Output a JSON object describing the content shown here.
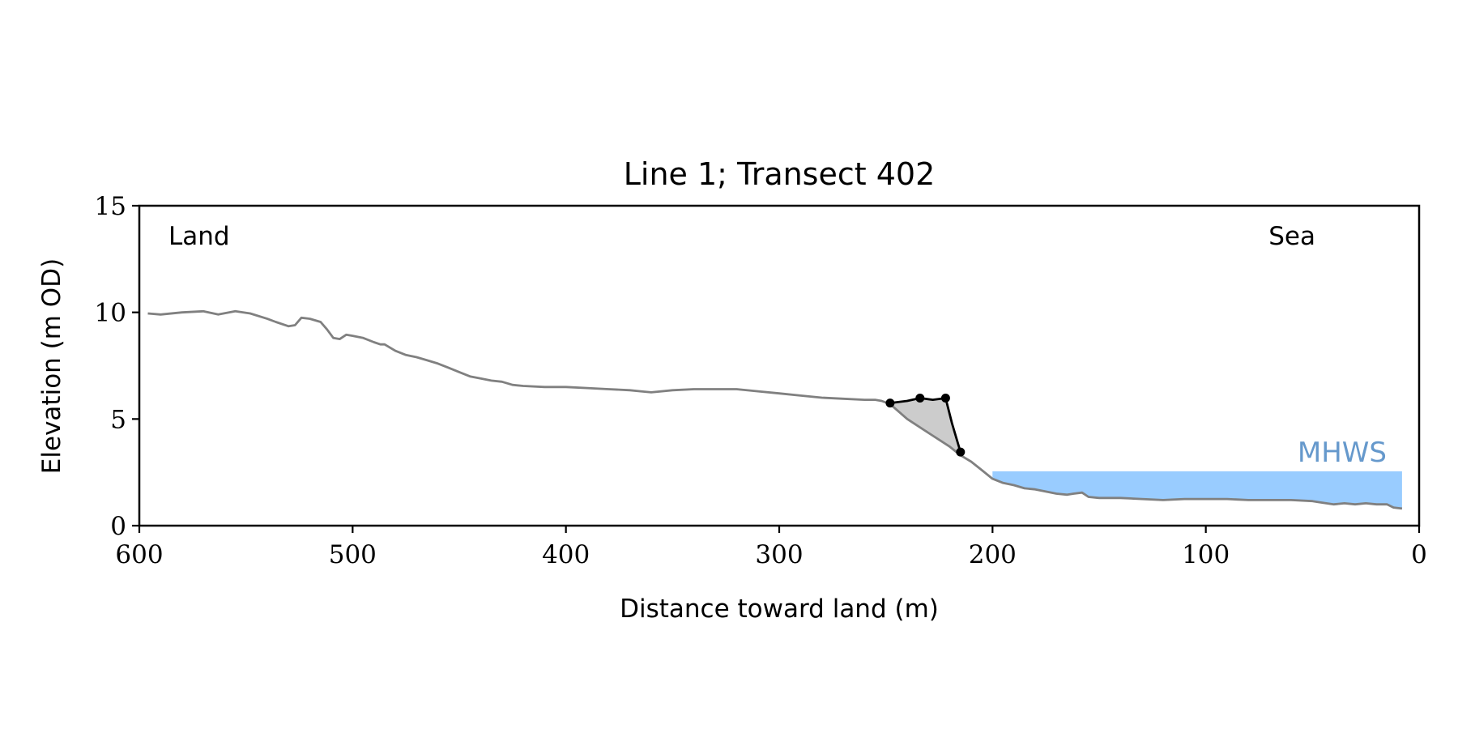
{
  "chart_data": {
    "type": "line",
    "title": "Line 1; Transect 402",
    "xlabel": "Distance toward land (m)",
    "ylabel": "Elevation (m OD)",
    "xlim": [
      600,
      0
    ],
    "ylim": [
      0,
      15
    ],
    "x_inverted": true,
    "xticks": [
      600,
      500,
      400,
      300,
      200,
      100,
      0
    ],
    "xtick_labels": [
      "600",
      "500",
      "400",
      "300",
      "200",
      "100",
      "0"
    ],
    "yticks": [
      0,
      5,
      10,
      15
    ],
    "ytick_labels": [
      "0",
      "5",
      "10",
      "15"
    ],
    "grid": false,
    "annotations": {
      "land": "Land",
      "sea": "Sea",
      "mhws": "MHWS"
    },
    "colors": {
      "profile": "#808080",
      "feature": "#000000",
      "feature_fill": "#cccccc",
      "water": "#99ccff",
      "mhws_text": "#6699cc"
    },
    "mhws_level": 2.55,
    "mhws_x_range": [
      200,
      8
    ],
    "profile": {
      "x": [
        596,
        590,
        580,
        570,
        563,
        555,
        548,
        540,
        536,
        530,
        527,
        524,
        520,
        515,
        512,
        509,
        506,
        503,
        500,
        495,
        490,
        487,
        485,
        480,
        475,
        470,
        465,
        460,
        455,
        450,
        445,
        440,
        435,
        430,
        425,
        420,
        410,
        400,
        390,
        380,
        370,
        365,
        360,
        350,
        340,
        330,
        320,
        310,
        300,
        290,
        280,
        270,
        260,
        255,
        252,
        248,
        240,
        230,
        220,
        215,
        210,
        205,
        200,
        195,
        190,
        185,
        180,
        175,
        170,
        165,
        162,
        158,
        155,
        150,
        140,
        130,
        120,
        110,
        100,
        90,
        80,
        70,
        60,
        50,
        47,
        40,
        35,
        30,
        25,
        20,
        15,
        12,
        8
      ],
      "y": [
        9.95,
        9.9,
        10.0,
        10.05,
        9.9,
        10.05,
        9.95,
        9.7,
        9.55,
        9.35,
        9.4,
        9.75,
        9.7,
        9.55,
        9.2,
        8.8,
        8.75,
        8.95,
        8.9,
        8.8,
        8.6,
        8.5,
        8.5,
        8.2,
        8.0,
        7.9,
        7.75,
        7.6,
        7.4,
        7.2,
        7.0,
        6.9,
        6.8,
        6.75,
        6.6,
        6.55,
        6.5,
        6.5,
        6.45,
        6.4,
        6.35,
        6.3,
        6.25,
        6.35,
        6.4,
        6.4,
        6.4,
        6.3,
        6.2,
        6.1,
        6.0,
        5.95,
        5.9,
        5.9,
        5.85,
        5.7,
        5.0,
        4.35,
        3.7,
        3.3,
        3.0,
        2.6,
        2.2,
        2.0,
        1.9,
        1.75,
        1.7,
        1.6,
        1.5,
        1.45,
        1.5,
        1.55,
        1.35,
        1.3,
        1.3,
        1.25,
        1.2,
        1.25,
        1.25,
        1.25,
        1.2,
        1.2,
        1.2,
        1.15,
        1.1,
        1.0,
        1.05,
        1.0,
        1.05,
        1.0,
        1.0,
        0.85,
        0.8
      ]
    },
    "feature": {
      "x": [
        248,
        240,
        234,
        228,
        222,
        219,
        215
      ],
      "y": [
        5.75,
        5.85,
        5.98,
        5.9,
        5.98,
        4.8,
        3.45
      ],
      "markers_x": [
        248,
        234,
        222,
        215
      ],
      "markers_y": [
        5.75,
        5.98,
        5.98,
        3.45
      ]
    }
  }
}
